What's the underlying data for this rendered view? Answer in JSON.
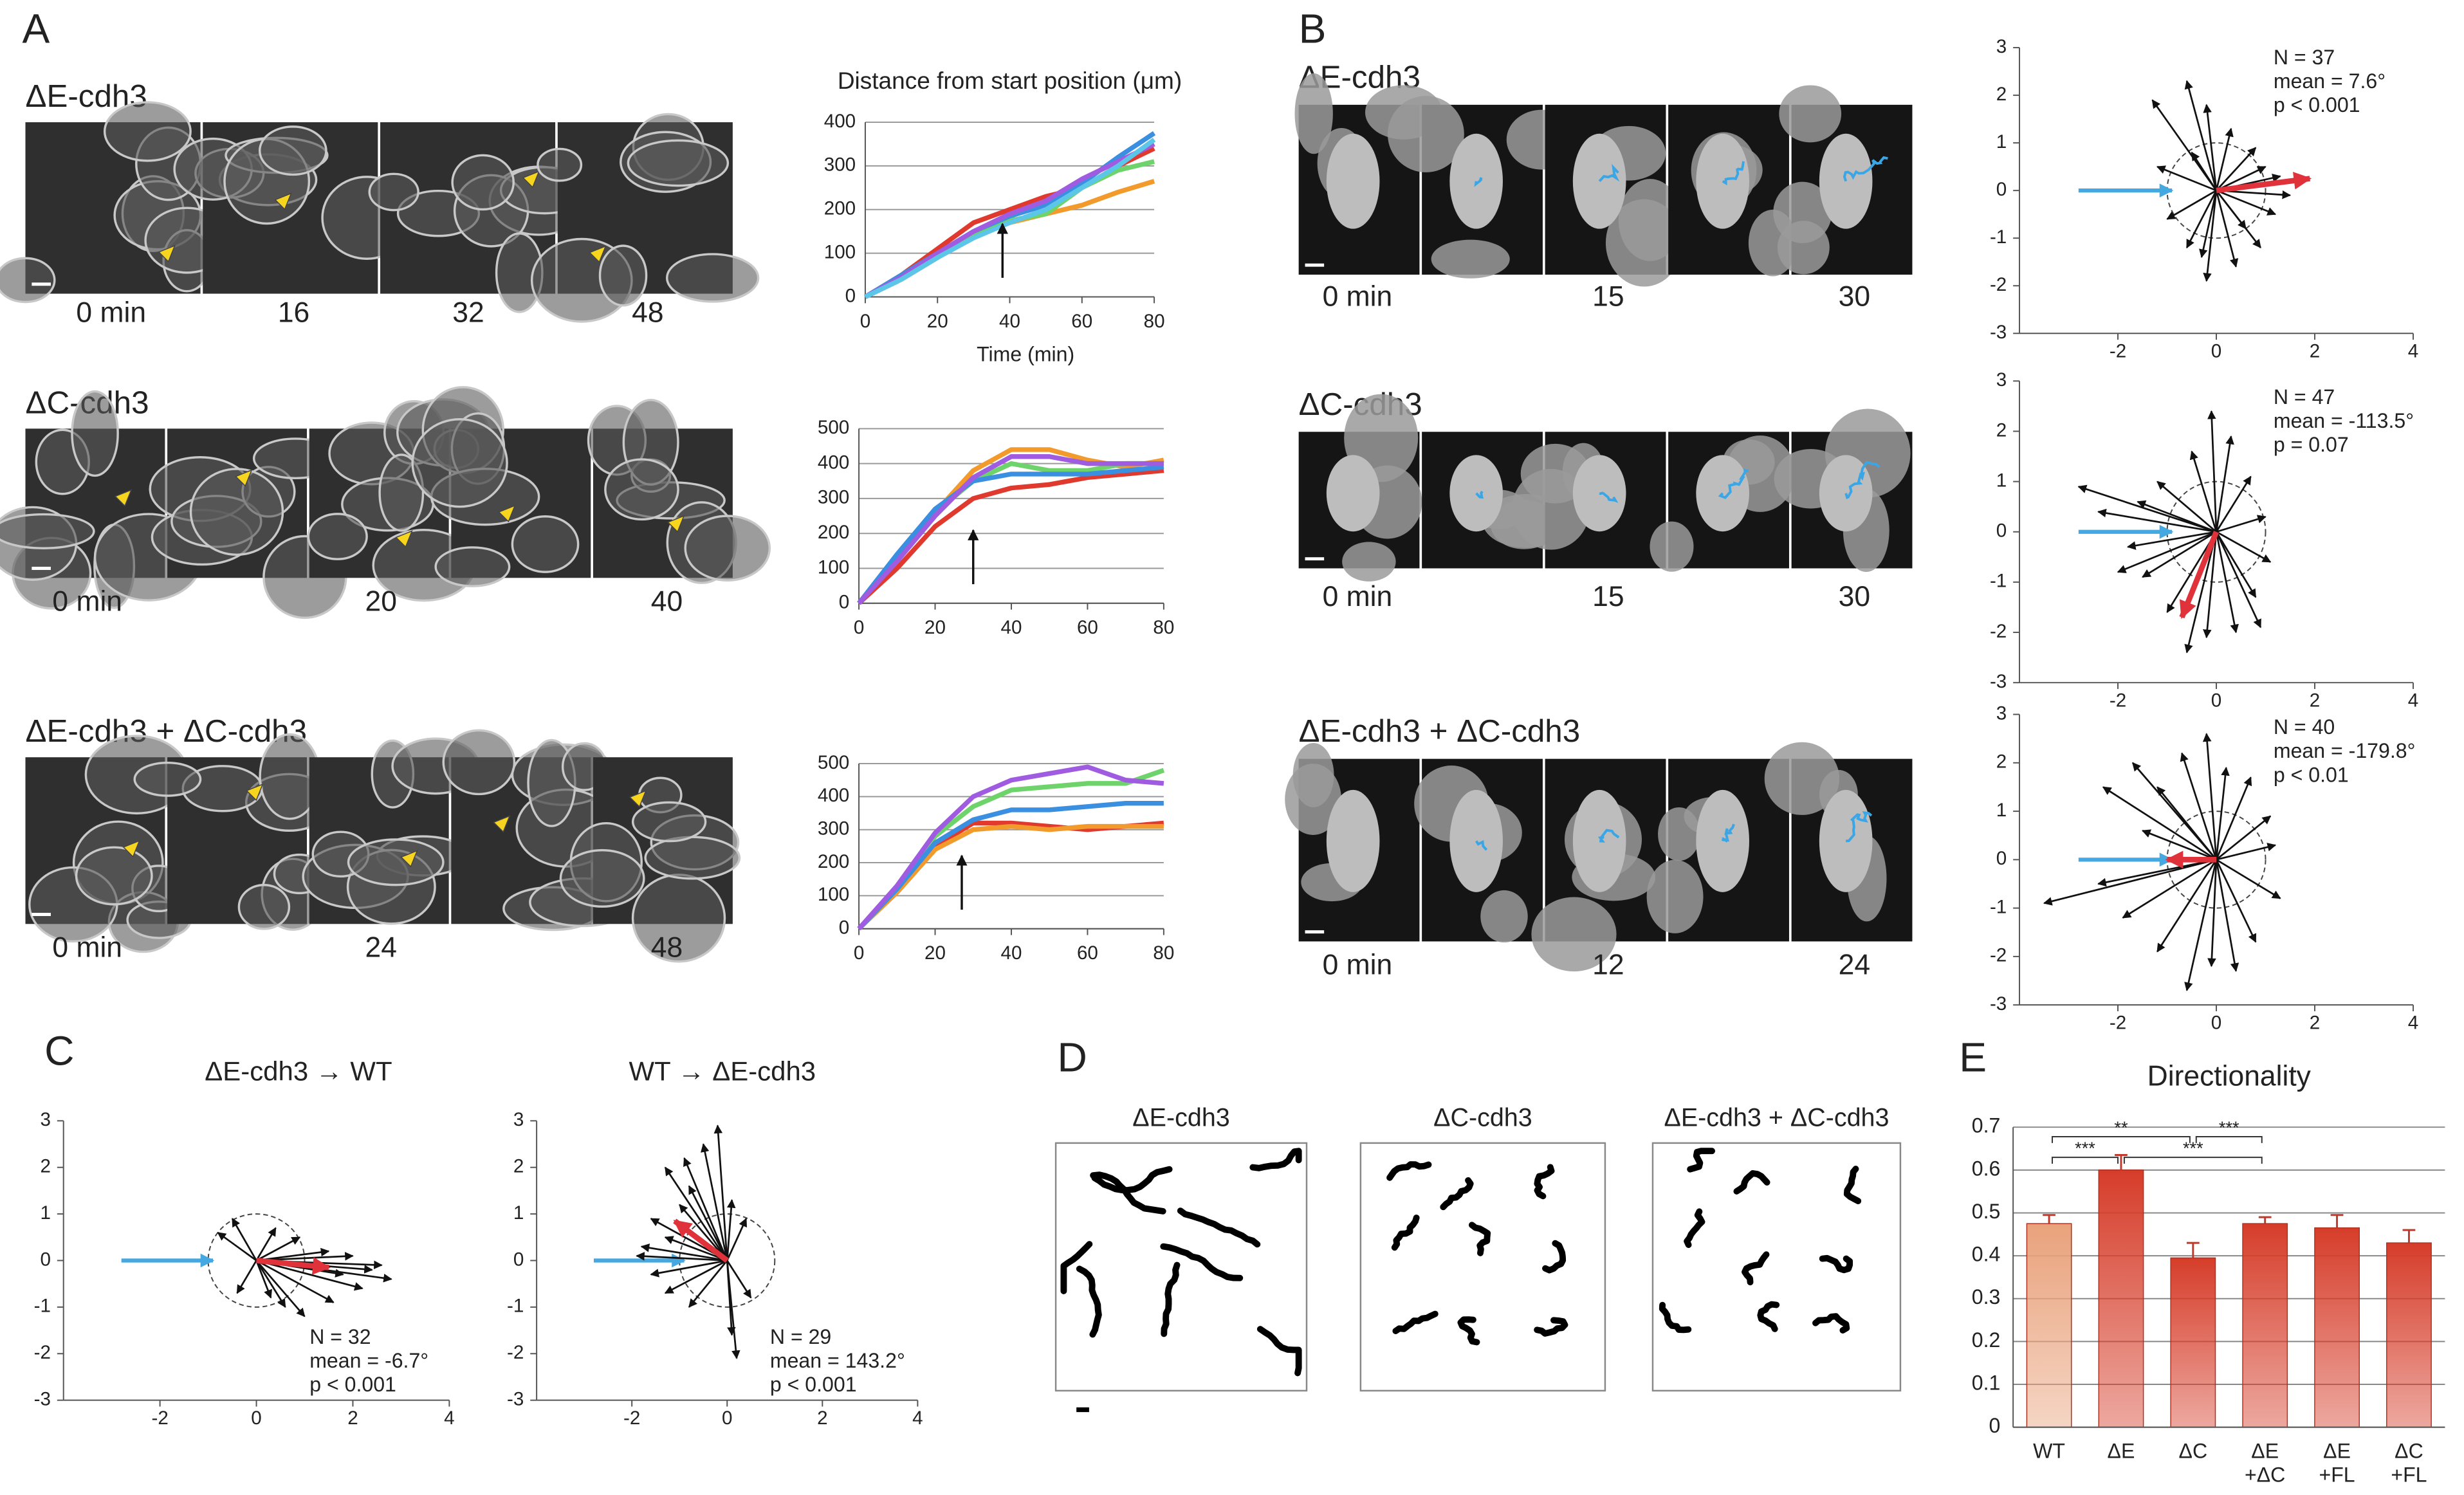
{
  "panel_a": {
    "letter": "A",
    "rows": [
      {
        "label": "ΔE-cdh3",
        "times": [
          "0 min",
          "16",
          "32",
          "48"
        ],
        "chart": {
          "type": "line",
          "title": "Distance from start position (μm)",
          "x_label": "Time (min)",
          "x": [
            0,
            10,
            20,
            30,
            40,
            50,
            60,
            70,
            80
          ],
          "series": [
            {
              "color": "#e03a2f",
              "values": [
                0,
                50,
                110,
                170,
                200,
                230,
                250,
                300,
                340
              ]
            },
            {
              "color": "#f39a2c",
              "values": [
                0,
                40,
                90,
                140,
                170,
                190,
                210,
                240,
                265
              ]
            },
            {
              "color": "#6fd36b",
              "values": [
                0,
                45,
                95,
                140,
                175,
                190,
                250,
                290,
                310
              ]
            },
            {
              "color": "#3b8fe0",
              "values": [
                0,
                50,
                100,
                150,
                185,
                210,
                260,
                320,
                375
              ]
            },
            {
              "color": "#a05ce0",
              "values": [
                0,
                45,
                100,
                150,
                190,
                220,
                270,
                310,
                350
              ]
            },
            {
              "color": "#5cc6e8",
              "values": [
                0,
                40,
                90,
                135,
                170,
                200,
                250,
                300,
                360
              ]
            }
          ],
          "xlim": [
            0,
            80
          ],
          "xticks": [
            0,
            20,
            40,
            60,
            80
          ],
          "ylim": [
            0,
            400
          ],
          "yticks": [
            0,
            100,
            200,
            300,
            400
          ],
          "grid": true,
          "arrow_x": 38
        }
      },
      {
        "label": "ΔC-cdh3",
        "times": [
          "0 min",
          "20",
          "40"
        ],
        "chart": {
          "type": "line",
          "x": [
            0,
            10,
            20,
            30,
            40,
            50,
            60,
            70,
            80
          ],
          "series": [
            {
              "color": "#e03a2f",
              "values": [
                0,
                100,
                220,
                300,
                330,
                340,
                360,
                370,
                380
              ]
            },
            {
              "color": "#f39a2c",
              "values": [
                0,
                130,
                260,
                380,
                440,
                440,
                410,
                390,
                410
              ]
            },
            {
              "color": "#6fd36b",
              "values": [
                0,
                130,
                260,
                350,
                400,
                380,
                380,
                400,
                400
              ]
            },
            {
              "color": "#3b8fe0",
              "values": [
                0,
                140,
                270,
                350,
                370,
                370,
                370,
                380,
                390
              ]
            },
            {
              "color": "#a05ce0",
              "values": [
                0,
                120,
                250,
                360,
                420,
                420,
                400,
                400,
                400
              ]
            }
          ],
          "xlim": [
            0,
            80
          ],
          "xticks": [
            0,
            20,
            40,
            60,
            80
          ],
          "ylim": [
            0,
            500
          ],
          "yticks": [
            0,
            100,
            200,
            300,
            400,
            500
          ],
          "grid": true,
          "arrow_x": 30
        }
      },
      {
        "label": "ΔE-cdh3 + ΔC-cdh3",
        "times": [
          "0 min",
          "24",
          "48"
        ],
        "chart": {
          "type": "line",
          "x": [
            0,
            10,
            20,
            30,
            40,
            50,
            60,
            70,
            80
          ],
          "series": [
            {
              "color": "#e03a2f",
              "values": [
                0,
                120,
                250,
                320,
                320,
                310,
                300,
                310,
                320
              ]
            },
            {
              "color": "#f39a2c",
              "values": [
                0,
                110,
                240,
                300,
                310,
                300,
                310,
                310,
                310
              ]
            },
            {
              "color": "#6fd36b",
              "values": [
                0,
                120,
                280,
                370,
                420,
                430,
                440,
                440,
                480
              ]
            },
            {
              "color": "#3b8fe0",
              "values": [
                0,
                120,
                260,
                330,
                360,
                360,
                370,
                380,
                380
              ]
            },
            {
              "color": "#a05ce0",
              "values": [
                0,
                130,
                290,
                400,
                450,
                470,
                490,
                450,
                440
              ]
            }
          ],
          "xlim": [
            0,
            80
          ],
          "xticks": [
            0,
            20,
            40,
            60,
            80
          ],
          "ylim": [
            0,
            500
          ],
          "yticks": [
            0,
            100,
            200,
            300,
            400,
            500
          ],
          "grid": true,
          "arrow_x": 27
        }
      }
    ]
  },
  "panel_b": {
    "letter": "B",
    "rows": [
      {
        "label": "ΔE-cdh3",
        "times": [
          "0 min",
          "15",
          "30"
        ],
        "chart": {
          "type": "vector",
          "stats": [
            "N = 37",
            "mean = 7.6°",
            "p < 0.001"
          ],
          "vectors": [
            [
              -1.3,
              1.9
            ],
            [
              -0.6,
              2.3
            ],
            [
              -0.2,
              1.8
            ],
            [
              0.3,
              1.3
            ],
            [
              0.8,
              0.9
            ],
            [
              1.3,
              0.3
            ],
            [
              1.5,
              -0.1
            ],
            [
              1.2,
              -0.5
            ],
            [
              0.9,
              -1.2
            ],
            [
              0.4,
              -1.6
            ],
            [
              -0.2,
              -1.9
            ],
            [
              -0.6,
              -1.2
            ],
            [
              -1.0,
              -0.6
            ],
            [
              -1.2,
              0.5
            ],
            [
              -0.5,
              0.8
            ],
            [
              0.6,
              -0.8
            ],
            [
              1.0,
              0.5
            ],
            [
              -0.3,
              -1.4
            ]
          ],
          "mean_vector": [
            1.9,
            0.25
          ],
          "mean_color": "#e0323a",
          "xlim": [
            -4,
            4
          ],
          "xticks": [
            -2,
            0,
            2,
            4
          ],
          "ylim": [
            -3,
            3
          ],
          "yticks": [
            -3,
            -2,
            -1,
            0,
            1,
            2,
            3
          ]
        }
      },
      {
        "label": "ΔC-cdh3",
        "times": [
          "0 min",
          "15",
          "30"
        ],
        "chart": {
          "type": "vector",
          "stats": [
            "N = 47",
            "mean = -113.5°",
            "p = 0.07"
          ],
          "vectors": [
            [
              -2.8,
              0.9
            ],
            [
              -2.4,
              0.4
            ],
            [
              -1.8,
              -0.3
            ],
            [
              -1.5,
              -0.9
            ],
            [
              -1.0,
              -1.6
            ],
            [
              -0.6,
              -2.4
            ],
            [
              -0.2,
              -2.1
            ],
            [
              0.4,
              -2.0
            ],
            [
              0.8,
              -1.3
            ],
            [
              1.1,
              -0.6
            ],
            [
              1.0,
              0.3
            ],
            [
              0.7,
              1.1
            ],
            [
              0.3,
              1.9
            ],
            [
              -0.1,
              2.4
            ],
            [
              -0.5,
              1.6
            ],
            [
              -1.2,
              1.0
            ],
            [
              -1.6,
              0.6
            ],
            [
              -2.0,
              -0.8
            ],
            [
              0.9,
              -1.9
            ]
          ],
          "mean_vector": [
            -0.7,
            -1.7
          ],
          "mean_color": "#e0323a",
          "xlim": [
            -4,
            4
          ],
          "xticks": [
            -2,
            0,
            2,
            4
          ],
          "ylim": [
            -3,
            3
          ],
          "yticks": [
            -3,
            -2,
            -1,
            0,
            1,
            2,
            3
          ]
        }
      },
      {
        "label": "ΔE-cdh3 + ΔC-cdh3",
        "times": [
          "0 min",
          "12",
          "24"
        ],
        "chart": {
          "type": "vector",
          "stats": [
            "N = 40",
            "mean = -179.8°",
            "p < 0.01"
          ],
          "vectors": [
            [
              -3.5,
              -0.9
            ],
            [
              -2.3,
              1.5
            ],
            [
              -1.7,
              2.0
            ],
            [
              -1.2,
              1.5
            ],
            [
              -0.7,
              2.2
            ],
            [
              -0.2,
              2.6
            ],
            [
              0.2,
              1.9
            ],
            [
              0.7,
              1.7
            ],
            [
              1.1,
              0.9
            ],
            [
              1.2,
              0.3
            ],
            [
              1.3,
              -0.8
            ],
            [
              0.8,
              -1.7
            ],
            [
              0.4,
              -2.3
            ],
            [
              -0.1,
              -2.2
            ],
            [
              -0.6,
              -2.7
            ],
            [
              -1.2,
              -1.9
            ],
            [
              -1.9,
              -1.2
            ],
            [
              -2.4,
              -0.5
            ],
            [
              -1.5,
              0.6
            ]
          ],
          "mean_vector": [
            -1.0,
            0.0
          ],
          "mean_color": "#e0323a",
          "xlim": [
            -4,
            4
          ],
          "xticks": [
            -2,
            0,
            2,
            4
          ],
          "ylim": [
            -3,
            3
          ],
          "yticks": [
            -3,
            -2,
            -1,
            0,
            1,
            2,
            3
          ]
        }
      }
    ]
  },
  "panel_c": {
    "letter": "C",
    "plots": [
      {
        "title": "ΔE-cdh3 → WT",
        "chart": {
          "type": "vector",
          "stats": [
            "N = 32",
            "mean = -6.7°",
            "p < 0.001"
          ],
          "vectors": [
            [
              -0.8,
              0.6
            ],
            [
              -0.5,
              0.9
            ],
            [
              0.4,
              0.7
            ],
            [
              0.9,
              0.5
            ],
            [
              1.5,
              0.2
            ],
            [
              2.0,
              0.1
            ],
            [
              2.6,
              -0.1
            ],
            [
              2.8,
              -0.4
            ],
            [
              2.2,
              -0.6
            ],
            [
              1.6,
              -0.9
            ],
            [
              1.0,
              -1.2
            ],
            [
              0.6,
              -1.0
            ],
            [
              0.3,
              -0.8
            ],
            [
              -0.4,
              -0.7
            ],
            [
              1.8,
              -0.3
            ],
            [
              2.4,
              -0.2
            ]
          ],
          "mean_vector": [
            1.5,
            -0.15
          ],
          "mean_color": "#e0323a",
          "xlim": [
            -4,
            4
          ],
          "xticks": [
            -2,
            0,
            2,
            4
          ],
          "ylim": [
            -3,
            3
          ],
          "yticks": [
            -3,
            -2,
            -1,
            0,
            1,
            2,
            3
          ]
        }
      },
      {
        "title": "WT → ΔE-cdh3",
        "chart": {
          "type": "vector",
          "stats": [
            "N = 29",
            "mean = 143.2°",
            "p < 0.001"
          ],
          "vectors": [
            [
              -1.3,
              2.0
            ],
            [
              -0.9,
              2.2
            ],
            [
              -0.2,
              2.9
            ],
            [
              -0.5,
              2.5
            ],
            [
              -0.8,
              1.6
            ],
            [
              -1.0,
              1.2
            ],
            [
              -1.6,
              0.9
            ],
            [
              -1.3,
              0.5
            ],
            [
              -1.8,
              0.3
            ],
            [
              -1.9,
              0.1
            ],
            [
              -1.6,
              -0.3
            ],
            [
              -1.3,
              -0.7
            ],
            [
              -0.8,
              -1.0
            ],
            [
              0.2,
              -2.1
            ],
            [
              0.1,
              -1.6
            ],
            [
              0.5,
              -0.8
            ],
            [
              0.4,
              0.9
            ],
            [
              0.1,
              1.3
            ]
          ],
          "mean_vector": [
            -1.1,
            0.85
          ],
          "mean_color": "#e0323a",
          "xlim": [
            -4,
            4
          ],
          "xticks": [
            -2,
            0,
            2,
            4
          ],
          "ylim": [
            -3,
            3
          ],
          "yticks": [
            -3,
            -2,
            -1,
            0,
            1,
            2,
            3
          ]
        }
      }
    ]
  },
  "panel_d": {
    "letter": "D",
    "titles": [
      "ΔE-cdh3",
      "ΔC-cdh3",
      "ΔE-cdh3 + ΔC-cdh3"
    ]
  },
  "panel_e": {
    "letter": "E",
    "chart": {
      "type": "bar",
      "title": "Directionality",
      "categories": [
        [
          "WT"
        ],
        [
          "ΔE"
        ],
        [
          "ΔC"
        ],
        [
          "ΔE",
          "+ΔC"
        ],
        [
          "ΔE",
          "+FL"
        ],
        [
          "ΔC",
          "+FL"
        ]
      ],
      "values": [
        0.475,
        0.6,
        0.395,
        0.475,
        0.465,
        0.43
      ],
      "errors": [
        0.02,
        0.035,
        0.035,
        0.015,
        0.03,
        0.03
      ],
      "colors": [
        "#e9a27c",
        "#d63d2a",
        "#d63d2a",
        "#d63d2a",
        "#d63d2a",
        "#d63d2a"
      ],
      "ylim": [
        0,
        0.7
      ],
      "yticks": [
        0,
        0.1,
        0.2,
        0.3,
        0.4,
        0.5,
        0.6,
        0.7
      ],
      "grid": true,
      "significance": [
        "**",
        "***",
        "***",
        "***"
      ]
    }
  }
}
